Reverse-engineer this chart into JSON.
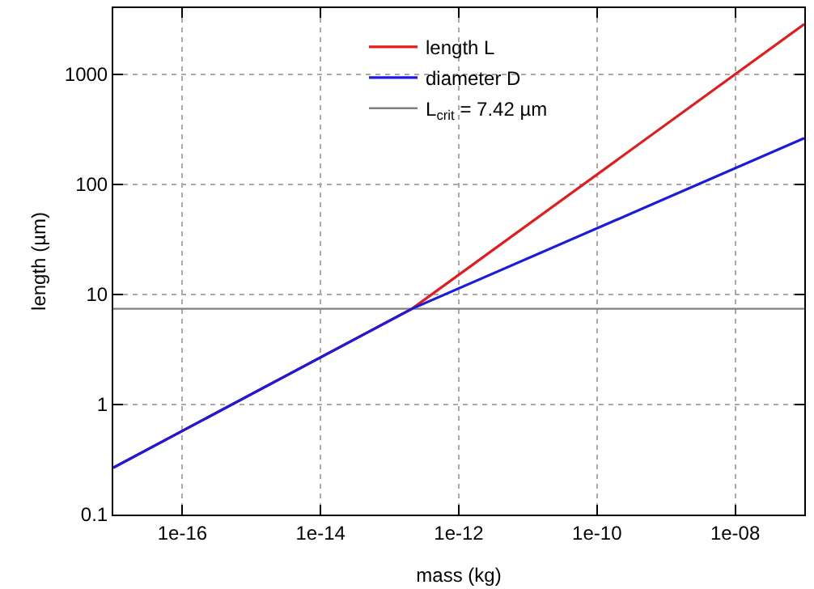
{
  "chart_data": {
    "type": "line",
    "xlabel": "mass (kg)",
    "ylabel": "length (µm)",
    "log": "xy",
    "series": [
      {
        "name": "length L",
        "color": "#e41a1c",
        "x": [
          1e-17,
          2.1e-13,
          1e-07
        ],
        "values": [
          0.267,
          7.42,
          2860
        ]
      },
      {
        "name": "diameter D",
        "color": "#1a1ae0",
        "x": [
          1e-17,
          2.1e-13,
          1e-07
        ],
        "values": [
          0.267,
          7.42,
          263
        ]
      }
    ],
    "ref_lines": [
      {
        "axis": "y",
        "value": 7.42,
        "label": "L$_{crit}$ = 7.42 µm",
        "color": "#808080",
        "line_style": "solid"
      }
    ],
    "xlim": [
      1e-17,
      1e-07
    ],
    "xticks": [
      {
        "value": 1e-16,
        "label": "1e-16"
      },
      {
        "value": 1e-14,
        "label": "1e-14"
      },
      {
        "value": 1e-12,
        "label": "1e-12"
      },
      {
        "value": 1e-10,
        "label": "1e-10"
      },
      {
        "value": 1e-08,
        "label": "1e-08"
      }
    ],
    "ylim": [
      0.1,
      4000
    ],
    "yticks": [
      0.1,
      1,
      10,
      100,
      1000
    ],
    "grid": true,
    "legend": "top",
    "line_style": "solid",
    "marker": "none"
  }
}
